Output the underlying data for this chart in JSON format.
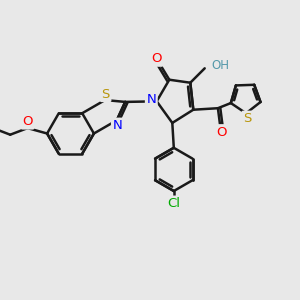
{
  "background_color": "#e8e8e8",
  "bond_color": "#1a1a1a",
  "bond_width": 1.8,
  "atom_colors": {
    "O": "#ff0000",
    "N": "#0000ff",
    "S": "#b8960c",
    "Cl": "#00aa00",
    "H": "#5599aa",
    "C": "#1a1a1a"
  },
  "font_size": 8.5,
  "fig_width": 3.0,
  "fig_height": 3.0,
  "dpi": 100
}
